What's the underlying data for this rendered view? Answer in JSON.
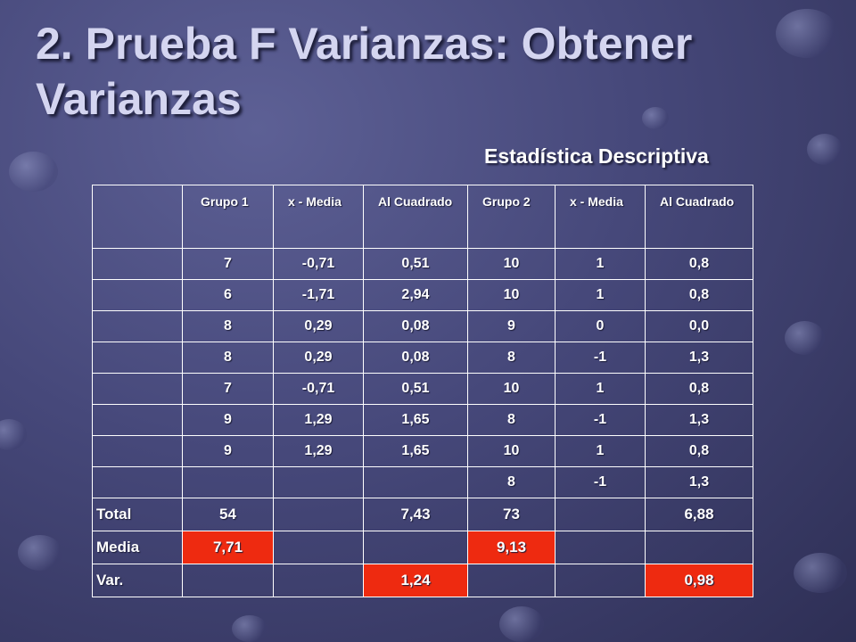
{
  "title": "2. Prueba F Varianzas: Obtener Varianzas",
  "subtitle": "Estadística Descriptiva",
  "headers": [
    "Grupo 1",
    "x - Media",
    "Al Cuadrado",
    "Grupo 2",
    "x - Media",
    "Al Cuadrado"
  ],
  "rows": [
    [
      "7",
      "-0,71",
      "0,51",
      "10",
      "1",
      "0,8"
    ],
    [
      "6",
      "-1,71",
      "2,94",
      "10",
      "1",
      "0,8"
    ],
    [
      "8",
      "0,29",
      "0,08",
      "9",
      "0",
      "0,0"
    ],
    [
      "8",
      "0,29",
      "0,08",
      "8",
      "-1",
      "1,3"
    ],
    [
      "7",
      "-0,71",
      "0,51",
      "10",
      "1",
      "0,8"
    ],
    [
      "9",
      "1,29",
      "1,65",
      "8",
      "-1",
      "1,3"
    ],
    [
      "9",
      "1,29",
      "1,65",
      "10",
      "1",
      "0,8"
    ],
    [
      "",
      "",
      "",
      "8",
      "-1",
      "1,3"
    ]
  ],
  "summary": {
    "total": {
      "label": "Total",
      "g1": "54",
      "g1_sq": "7,43",
      "g2": "73",
      "g2_sq": "6,88"
    },
    "media": {
      "label": "Media",
      "g1": "7,71",
      "g2": "9,13"
    },
    "var": {
      "label": "Var.",
      "g1": "1,24",
      "g2": "0,98"
    }
  },
  "colors": {
    "highlight": "#ee2a10",
    "background": "#46487a",
    "title": "#d4d5f0"
  }
}
